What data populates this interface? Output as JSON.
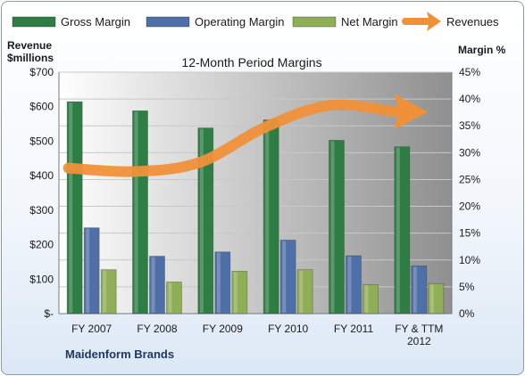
{
  "chart_data": {
    "type": "bar",
    "title": "12-Month Period Margins",
    "subtitle": "Maidenform Brands",
    "categories": [
      "FY 2007",
      "FY 2008",
      "FY 2009",
      "FY 2010",
      "FY 2011",
      "FY & TTM 2012"
    ],
    "series": [
      {
        "name": "Gross Margin",
        "type": "bar",
        "axis": "right",
        "values": [
          39.5,
          37.8,
          34.6,
          36.1,
          32.3,
          31.1
        ],
        "color": "#2e7d44"
      },
      {
        "name": "Operating Margin",
        "type": "bar",
        "axis": "right",
        "values": [
          16.0,
          10.7,
          11.5,
          13.7,
          10.8,
          8.9
        ],
        "color": "#4f6fa8"
      },
      {
        "name": "Net Margin",
        "type": "bar",
        "axis": "right",
        "values": [
          8.2,
          5.9,
          7.9,
          8.2,
          5.4,
          5.6
        ],
        "color": "#8fae55"
      },
      {
        "name": "Revenues",
        "type": "trend-arrow",
        "axis": "left",
        "values": [
          422,
          412,
          438,
          540,
          604,
          585
        ],
        "color": "#f0913a"
      }
    ],
    "ylabel_left": "Revenue\n$millions",
    "ylabel_right": "Margin %",
    "ylim_left": [
      0,
      700
    ],
    "ylim_right": [
      0,
      45
    ],
    "yticks_left": [
      "$-",
      "$100",
      "$200",
      "$300",
      "$400",
      "$500",
      "$600",
      "$700"
    ],
    "yticks_right": [
      "0%",
      "5%",
      "10%",
      "15%",
      "20%",
      "25%",
      "30%",
      "35%",
      "40%",
      "45%"
    ],
    "xtick_labels": [
      [
        "FY 2007"
      ],
      [
        "FY 2008"
      ],
      [
        "FY 2009"
      ],
      [
        "FY 2010"
      ],
      [
        "FY 2011"
      ],
      [
        "FY & TTM",
        "2012"
      ]
    ],
    "grid": true,
    "legend_position": "top"
  },
  "legend": [
    {
      "label": "Gross Margin",
      "color": "#2e7d44",
      "shape": "bar"
    },
    {
      "label": "Operating Margin",
      "color": "#4f6fa8",
      "shape": "bar"
    },
    {
      "label": "Net Margin",
      "color": "#8fae55",
      "shape": "bar"
    },
    {
      "label": "Revenues",
      "color": "#f0913a",
      "shape": "arrow"
    }
  ],
  "labels": {
    "left_title_1": "Revenue",
    "left_title_2": "$millions",
    "right_title": "Margin %",
    "title": "12-Month Period Margins",
    "brand": "Maidenform Brands"
  }
}
